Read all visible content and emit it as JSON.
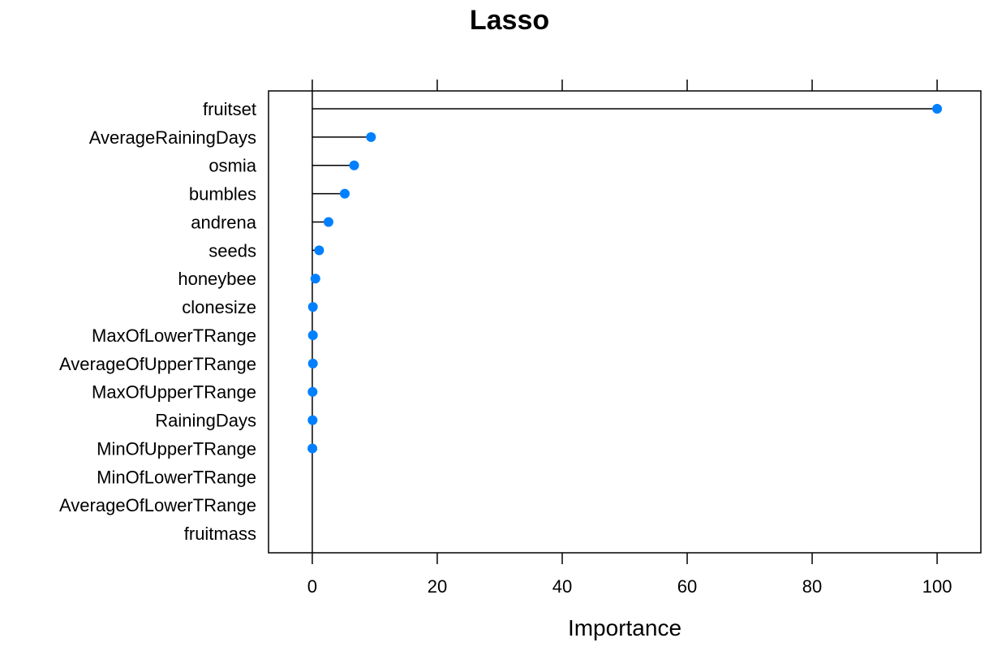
{
  "chart_data": {
    "type": "dotplot",
    "title": "Lasso",
    "xlabel": "Importance",
    "ylabel": "",
    "xlim": [
      -7,
      107
    ],
    "x_ticks": [
      0,
      20,
      40,
      60,
      80,
      100
    ],
    "x_tick_labels": [
      "0",
      "20",
      "40",
      "60",
      "80",
      "100"
    ],
    "grid": false,
    "legend": "none",
    "categories": [
      "fruitset",
      "AverageRainingDays",
      "osmia",
      "bumbles",
      "andrena",
      "seeds",
      "honeybee",
      "clonesize",
      "MaxOfLowerTRange",
      "AverageOfUpperTRange",
      "MaxOfUpperTRange",
      "RainingDays",
      "MinOfUpperTRange",
      "MinOfLowerTRange",
      "AverageOfLowerTRange",
      "fruitmass"
    ],
    "values": [
      100,
      9.4,
      6.7,
      5.2,
      2.6,
      1.1,
      0.5,
      0.1,
      0.1,
      0.1,
      0.05,
      0.05,
      0.02,
      null,
      null,
      null
    ],
    "point_color": "#0080ff",
    "line_color": "#000000"
  }
}
